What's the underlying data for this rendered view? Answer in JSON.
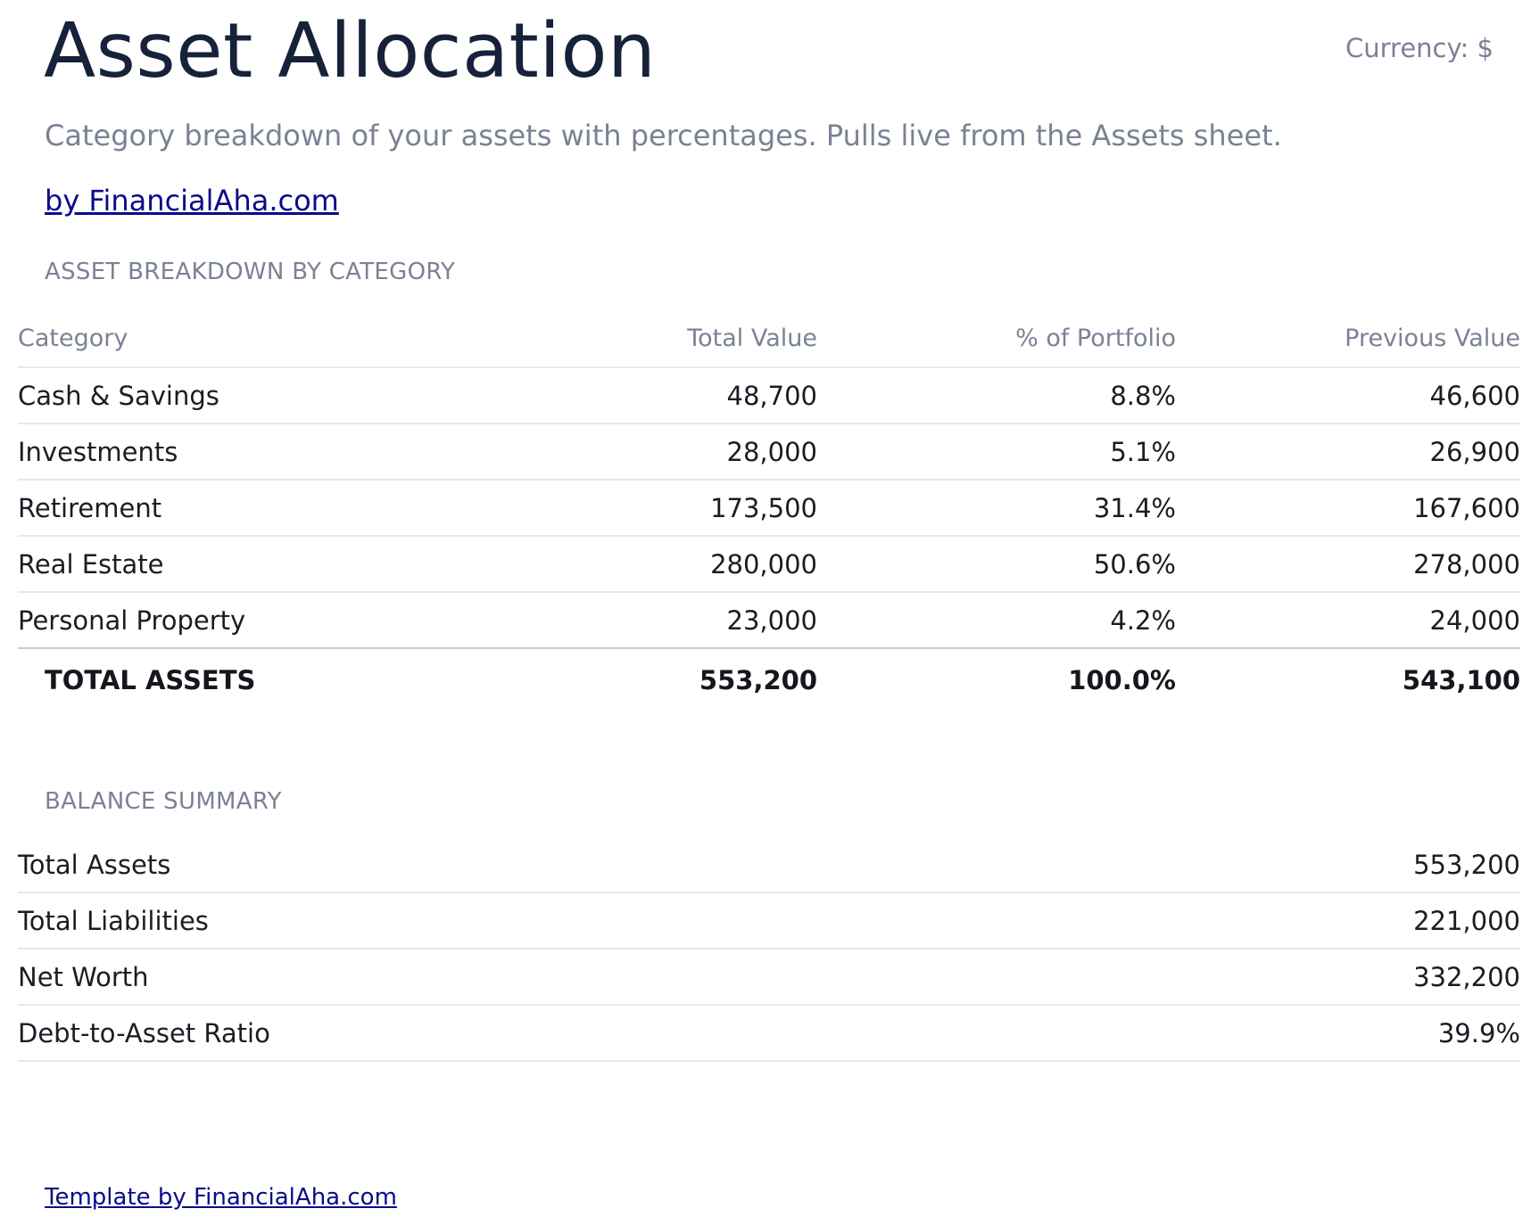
{
  "header": {
    "title": "Asset Allocation",
    "currency": "Currency: $",
    "subtitle": "Category breakdown of your assets with percentages. Pulls live from the Assets sheet.",
    "byline": "by FinancialAha.com"
  },
  "allocation": {
    "heading": "ASSET BREAKDOWN BY CATEGORY",
    "columns": {
      "category": "Category",
      "total_value": "Total Value",
      "percent": "% of Portfolio",
      "previous": "Previous Value"
    },
    "rows": [
      {
        "category": "Cash & Savings",
        "total_value": "48,700",
        "percent": "8.8%",
        "previous": "46,600"
      },
      {
        "category": "Investments",
        "total_value": "28,000",
        "percent": "5.1%",
        "previous": "26,900"
      },
      {
        "category": "Retirement",
        "total_value": "173,500",
        "percent": "31.4%",
        "previous": "167,600"
      },
      {
        "category": "Real Estate",
        "total_value": "280,000",
        "percent": "50.6%",
        "previous": "278,000"
      },
      {
        "category": "Personal Property",
        "total_value": "23,000",
        "percent": "4.2%",
        "previous": "24,000"
      }
    ],
    "total": {
      "label": "TOTAL ASSETS",
      "total_value": "553,200",
      "percent": "100.0%",
      "previous": "543,100"
    }
  },
  "summary": {
    "heading": "BALANCE SUMMARY",
    "rows": [
      {
        "label": "Total Assets",
        "value": "553,200"
      },
      {
        "label": "Total Liabilities",
        "value": "221,000"
      },
      {
        "label": "Net Worth",
        "value": "332,200"
      },
      {
        "label": "Debt-to-Asset Ratio",
        "value": "39.9%"
      }
    ]
  },
  "footer": {
    "link": "Template by FinancialAha.com"
  },
  "colors": {
    "title": "#16213a",
    "muted": "#7a8294",
    "link": "#0b0b8a",
    "divider": "#e6e8ec"
  }
}
